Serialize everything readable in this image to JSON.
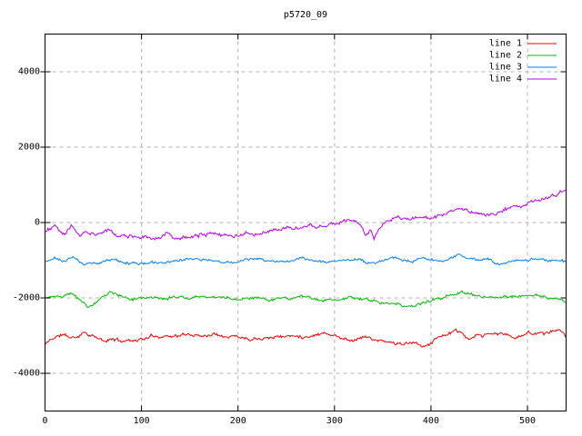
{
  "title": "p5720_09",
  "colors": {
    "background": "#ffffff",
    "border": "#000000",
    "grid": "#b4b4b4",
    "text": "#000000"
  },
  "chart_data": {
    "type": "line",
    "title": "p5720_09",
    "xlabel": "",
    "ylabel": "",
    "xlim": [
      0,
      540
    ],
    "ylim": [
      -5000,
      5000
    ],
    "x_ticks": [
      0,
      100,
      200,
      300,
      400,
      500
    ],
    "y_ticks": [
      -4000,
      -2000,
      0,
      2000,
      4000
    ],
    "grid": true,
    "grid_style": "dashed",
    "legend_position": "top-right",
    "series": [
      {
        "name": "line 1",
        "color": "#ff0000",
        "noise_amplitude": 55,
        "points": [
          [
            0,
            -3240
          ],
          [
            5,
            -3120
          ],
          [
            10,
            -3050
          ],
          [
            18,
            -2970
          ],
          [
            25,
            -3040
          ],
          [
            32,
            -3060
          ],
          [
            38,
            -2930
          ],
          [
            42,
            -2900
          ],
          [
            48,
            -2990
          ],
          [
            55,
            -3080
          ],
          [
            62,
            -3170
          ],
          [
            70,
            -3090
          ],
          [
            78,
            -3140
          ],
          [
            88,
            -3120
          ],
          [
            100,
            -3090
          ],
          [
            110,
            -3030
          ],
          [
            120,
            -3000
          ],
          [
            135,
            -3000
          ],
          [
            150,
            -2980
          ],
          [
            165,
            -2990
          ],
          [
            178,
            -2940
          ],
          [
            190,
            -3000
          ],
          [
            200,
            -3010
          ],
          [
            212,
            -3070
          ],
          [
            225,
            -3030
          ],
          [
            240,
            -3020
          ],
          [
            255,
            -3010
          ],
          [
            270,
            -3020
          ],
          [
            283,
            -2950
          ],
          [
            290,
            -2900
          ],
          [
            300,
            -3000
          ],
          [
            310,
            -3080
          ],
          [
            318,
            -3120
          ],
          [
            330,
            -3010
          ],
          [
            340,
            -3100
          ],
          [
            352,
            -3170
          ],
          [
            362,
            -3200
          ],
          [
            372,
            -3230
          ],
          [
            382,
            -3210
          ],
          [
            392,
            -3280
          ],
          [
            400,
            -3180
          ],
          [
            410,
            -3000
          ],
          [
            418,
            -2950
          ],
          [
            425,
            -2880
          ],
          [
            433,
            -2980
          ],
          [
            440,
            -3140
          ],
          [
            450,
            -3000
          ],
          [
            462,
            -2970
          ],
          [
            475,
            -2950
          ],
          [
            490,
            -3080
          ],
          [
            500,
            -2910
          ],
          [
            512,
            -2930
          ],
          [
            522,
            -2910
          ],
          [
            532,
            -2860
          ],
          [
            540,
            -2950
          ]
        ]
      },
      {
        "name": "line 2",
        "color": "#00c000",
        "noise_amplitude": 50,
        "points": [
          [
            0,
            -2000
          ],
          [
            8,
            -1930
          ],
          [
            15,
            -2000
          ],
          [
            22,
            -1900
          ],
          [
            27,
            -1850
          ],
          [
            33,
            -1990
          ],
          [
            40,
            -2130
          ],
          [
            45,
            -2220
          ],
          [
            52,
            -2090
          ],
          [
            60,
            -1960
          ],
          [
            67,
            -1860
          ],
          [
            75,
            -1950
          ],
          [
            85,
            -2010
          ],
          [
            95,
            -2050
          ],
          [
            105,
            -2040
          ],
          [
            115,
            -2030
          ],
          [
            125,
            -2040
          ],
          [
            135,
            -1975
          ],
          [
            145,
            -2010
          ],
          [
            155,
            -2000
          ],
          [
            165,
            -2020
          ],
          [
            175,
            -1990
          ],
          [
            185,
            -2010
          ],
          [
            195,
            -2040
          ],
          [
            205,
            -2000
          ],
          [
            215,
            -1980
          ],
          [
            225,
            -2010
          ],
          [
            235,
            -2040
          ],
          [
            245,
            -2000
          ],
          [
            255,
            -2020
          ],
          [
            265,
            -1990
          ],
          [
            275,
            -2010
          ],
          [
            285,
            -2120
          ],
          [
            295,
            -2060
          ],
          [
            305,
            -2050
          ],
          [
            315,
            -2000
          ],
          [
            322,
            -1985
          ],
          [
            332,
            -2040
          ],
          [
            342,
            -2060
          ],
          [
            352,
            -2120
          ],
          [
            362,
            -2150
          ],
          [
            372,
            -2200
          ],
          [
            382,
            -2170
          ],
          [
            392,
            -2140
          ],
          [
            400,
            -2100
          ],
          [
            410,
            -2000
          ],
          [
            420,
            -1950
          ],
          [
            430,
            -1900
          ],
          [
            440,
            -1870
          ],
          [
            450,
            -1950
          ],
          [
            460,
            -2000
          ],
          [
            472,
            -1985
          ],
          [
            482,
            -1970
          ],
          [
            492,
            -1990
          ],
          [
            502,
            -1930
          ],
          [
            512,
            -1945
          ],
          [
            522,
            -1990
          ],
          [
            532,
            -2010
          ],
          [
            540,
            -2060
          ]
        ]
      },
      {
        "name": "line 3",
        "color": "#0080ff",
        "noise_amplitude": 45,
        "points": [
          [
            0,
            -1060
          ],
          [
            6,
            -1000
          ],
          [
            11,
            -950
          ],
          [
            18,
            -1020
          ],
          [
            24,
            -980
          ],
          [
            29,
            -920
          ],
          [
            35,
            -1000
          ],
          [
            40,
            -1130
          ],
          [
            48,
            -1060
          ],
          [
            55,
            -1100
          ],
          [
            62,
            -1050
          ],
          [
            70,
            -990
          ],
          [
            78,
            -1040
          ],
          [
            88,
            -1080
          ],
          [
            100,
            -1060
          ],
          [
            112,
            -1050
          ],
          [
            124,
            -1070
          ],
          [
            136,
            -1050
          ],
          [
            148,
            -1010
          ],
          [
            160,
            -980
          ],
          [
            172,
            -1000
          ],
          [
            184,
            -1030
          ],
          [
            196,
            -1050
          ],
          [
            208,
            -990
          ],
          [
            220,
            -980
          ],
          [
            232,
            -1010
          ],
          [
            244,
            -1040
          ],
          [
            255,
            -1000
          ],
          [
            264,
            -940
          ],
          [
            275,
            -990
          ],
          [
            285,
            -1030
          ],
          [
            295,
            -1050
          ],
          [
            305,
            -1010
          ],
          [
            315,
            -980
          ],
          [
            325,
            -1000
          ],
          [
            335,
            -1070
          ],
          [
            345,
            -1020
          ],
          [
            355,
            -990
          ],
          [
            362,
            -930
          ],
          [
            370,
            -1010
          ],
          [
            380,
            -1040
          ],
          [
            390,
            -1000
          ],
          [
            400,
            -970
          ],
          [
            410,
            -1000
          ],
          [
            420,
            -950
          ],
          [
            430,
            -870
          ],
          [
            440,
            -950
          ],
          [
            450,
            -1000
          ],
          [
            460,
            -980
          ],
          [
            470,
            -1120
          ],
          [
            480,
            -1050
          ],
          [
            490,
            -1020
          ],
          [
            500,
            -980
          ],
          [
            510,
            -950
          ],
          [
            520,
            -1000
          ],
          [
            530,
            -970
          ],
          [
            540,
            -1040
          ]
        ]
      },
      {
        "name": "line 4",
        "color": "#c000ff",
        "noise_amplitude": 65,
        "points": [
          [
            0,
            -260
          ],
          [
            5,
            -200
          ],
          [
            10,
            -110
          ],
          [
            15,
            -200
          ],
          [
            20,
            -300
          ],
          [
            24,
            -200
          ],
          [
            27,
            -80
          ],
          [
            32,
            -220
          ],
          [
            37,
            -320
          ],
          [
            42,
            -250
          ],
          [
            46,
            -330
          ],
          [
            52,
            -290
          ],
          [
            58,
            -260
          ],
          [
            65,
            -210
          ],
          [
            70,
            -300
          ],
          [
            76,
            -380
          ],
          [
            82,
            -360
          ],
          [
            90,
            -350
          ],
          [
            100,
            -360
          ],
          [
            108,
            -390
          ],
          [
            116,
            -420
          ],
          [
            124,
            -380
          ],
          [
            128,
            -260
          ],
          [
            134,
            -420
          ],
          [
            140,
            -450
          ],
          [
            148,
            -400
          ],
          [
            155,
            -380
          ],
          [
            162,
            -340
          ],
          [
            170,
            -290
          ],
          [
            178,
            -330
          ],
          [
            186,
            -350
          ],
          [
            195,
            -330
          ],
          [
            205,
            -310
          ],
          [
            215,
            -290
          ],
          [
            225,
            -270
          ],
          [
            235,
            -240
          ],
          [
            245,
            -220
          ],
          [
            255,
            -200
          ],
          [
            262,
            -170
          ],
          [
            270,
            -160
          ],
          [
            278,
            -130
          ],
          [
            286,
            -100
          ],
          [
            294,
            -60
          ],
          [
            302,
            -30
          ],
          [
            310,
            40
          ],
          [
            316,
            20
          ],
          [
            322,
            50
          ],
          [
            328,
            -120
          ],
          [
            333,
            -380
          ],
          [
            337,
            -200
          ],
          [
            341,
            -420
          ],
          [
            345,
            -250
          ],
          [
            350,
            -90
          ],
          [
            356,
            30
          ],
          [
            362,
            90
          ],
          [
            368,
            140
          ],
          [
            374,
            110
          ],
          [
            380,
            90
          ],
          [
            386,
            50
          ],
          [
            392,
            100
          ],
          [
            398,
            90
          ],
          [
            404,
            130
          ],
          [
            410,
            170
          ],
          [
            416,
            220
          ],
          [
            424,
            280
          ],
          [
            430,
            320
          ],
          [
            436,
            340
          ],
          [
            442,
            300
          ],
          [
            448,
            260
          ],
          [
            454,
            200
          ],
          [
            460,
            180
          ],
          [
            466,
            240
          ],
          [
            472,
            280
          ],
          [
            478,
            330
          ],
          [
            484,
            390
          ],
          [
            490,
            430
          ],
          [
            496,
            500
          ],
          [
            502,
            560
          ],
          [
            508,
            590
          ],
          [
            514,
            620
          ],
          [
            520,
            650
          ],
          [
            526,
            690
          ],
          [
            530,
            710
          ],
          [
            534,
            800
          ],
          [
            538,
            870
          ],
          [
            540,
            830
          ]
        ]
      }
    ]
  },
  "legend": {
    "entries": [
      {
        "label": "line 1",
        "color": "#ff0000"
      },
      {
        "label": "line 2",
        "color": "#00c000"
      },
      {
        "label": "line 3",
        "color": "#0080ff"
      },
      {
        "label": "line 4",
        "color": "#c000ff"
      }
    ]
  }
}
